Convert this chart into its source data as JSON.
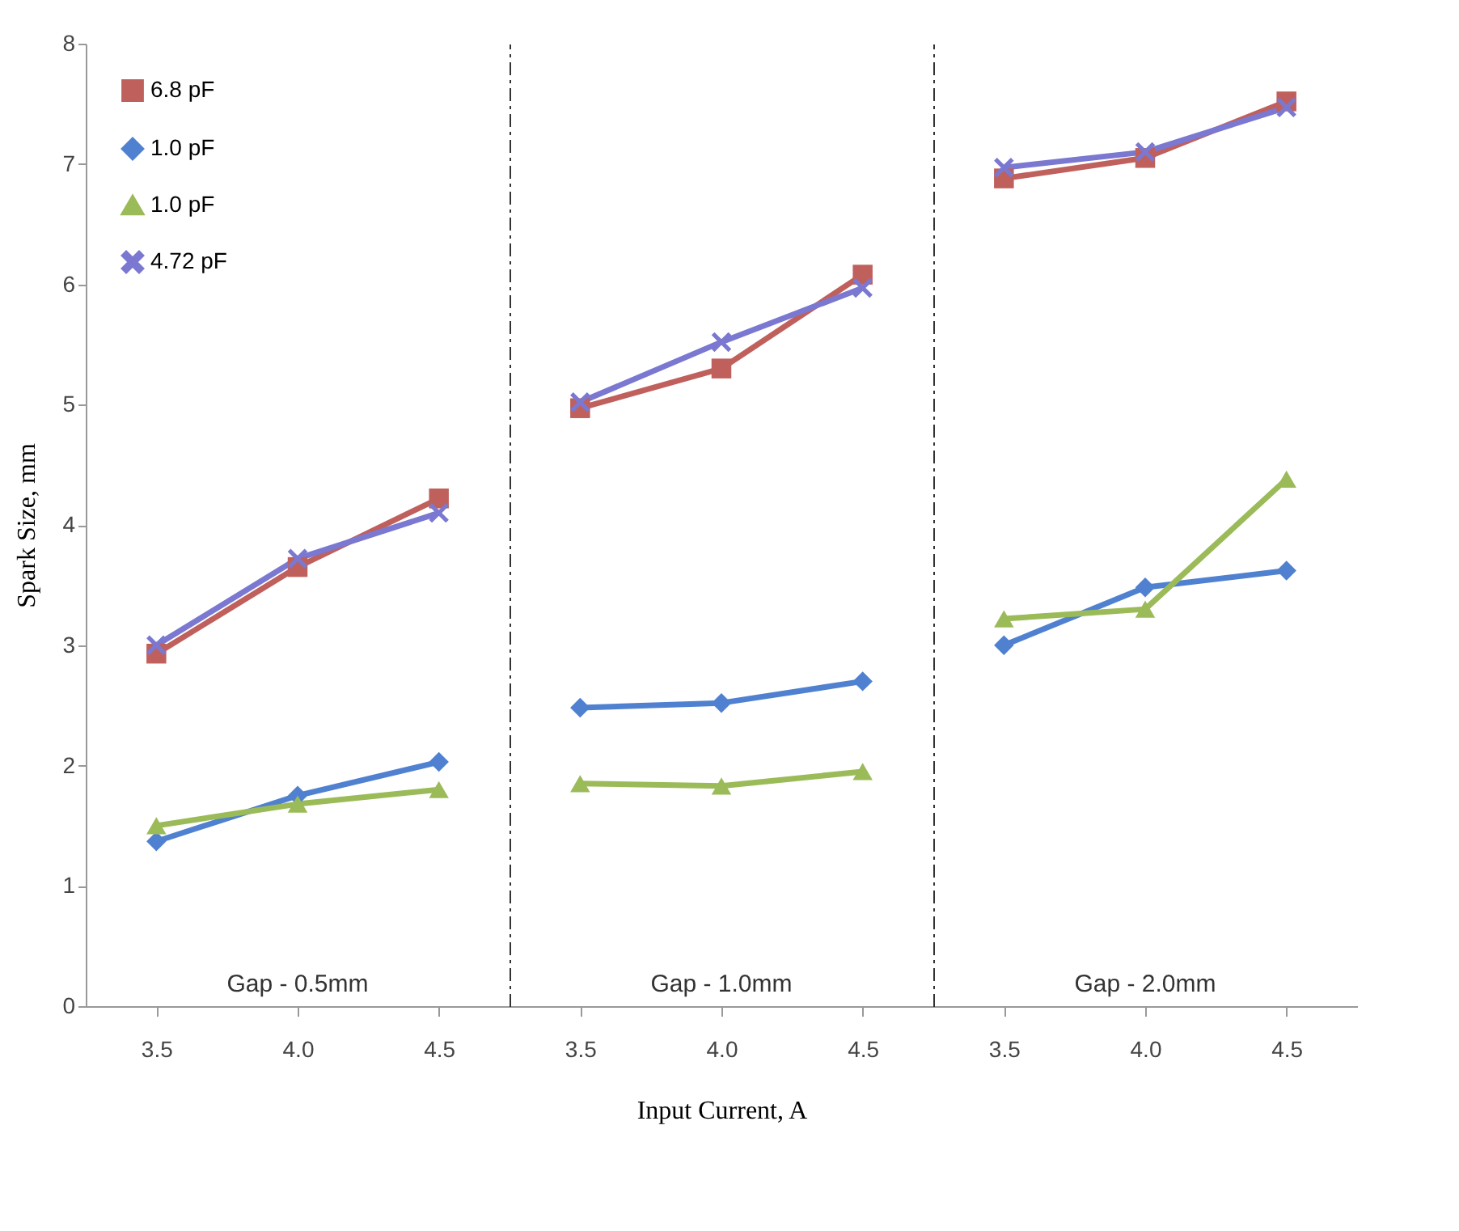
{
  "chart_data": [
    {
      "type": "line",
      "ylabel": "Spark Size, mm",
      "categories": [
        "3.5",
        "4.0",
        "4.5"
      ],
      "ylim": [
        0,
        8
      ],
      "yticks": [
        0,
        1,
        2,
        3,
        4,
        5,
        6,
        7,
        8
      ],
      "legend": "top left",
      "annotations": [
        "Gap - 0.5mm"
      ],
      "series": [
        {
          "name": "6.8 pF",
          "color": "#c0605c",
          "marker": "square",
          "values": [
            2.93,
            3.65,
            4.22
          ]
        },
        {
          "name": "1.0 pF",
          "color": "#4f81d0",
          "marker": "diamond",
          "values": [
            1.37,
            1.75,
            2.03
          ]
        },
        {
          "name": "1.0 pF",
          "color": "#9bbb59",
          "marker": "triangle",
          "values": [
            1.5,
            1.68,
            1.8
          ]
        },
        {
          "name": "4.72 pF",
          "color": "#7a78d0",
          "marker": "cross",
          "values": [
            3.0,
            3.72,
            4.1
          ]
        }
      ]
    },
    {
      "type": "line",
      "xlabel": "Input Current, A",
      "categories": [
        "3.5",
        "4.0",
        "4.5"
      ],
      "ylim": [
        0,
        8
      ],
      "yticks": [
        0,
        1,
        2,
        3,
        4,
        5,
        6,
        7,
        8
      ],
      "tick_labels": "x",
      "annotations": [
        "Gap - 1.0mm"
      ],
      "series": [
        {
          "color": "#c0605c",
          "marker": "square",
          "values": [
            4.97,
            5.3,
            6.08
          ]
        },
        {
          "color": "#4f81d0",
          "marker": "diamond",
          "values": [
            2.48,
            2.52,
            2.7
          ]
        },
        {
          "color": "#9bbb59",
          "marker": "triangle",
          "values": [
            1.85,
            1.83,
            1.95
          ]
        },
        {
          "color": "#7a78d0",
          "marker": "cross",
          "values": [
            5.02,
            5.52,
            5.97
          ]
        }
      ]
    },
    {
      "type": "line",
      "categories": [
        "3.5",
        "4.0",
        "4.5"
      ],
      "ylim": [
        0,
        8
      ],
      "yticks": [
        0,
        1,
        2,
        3,
        4,
        5,
        6,
        7,
        8
      ],
      "tick_labels": "x",
      "annotations": [
        "Gap - 2.0mm"
      ],
      "series": [
        {
          "color": "#c0605c",
          "marker": "square",
          "values": [
            6.88,
            7.05,
            7.52
          ]
        },
        {
          "color": "#4f81d0",
          "marker": "diamond",
          "values": [
            3.0,
            3.48,
            3.62
          ]
        },
        {
          "color": "#9bbb59",
          "marker": "triangle",
          "values": [
            3.22,
            3.3,
            4.38
          ]
        },
        {
          "color": "#7a78d0",
          "marker": "cross",
          "values": [
            6.97,
            7.1,
            7.47
          ]
        }
      ]
    }
  ]
}
